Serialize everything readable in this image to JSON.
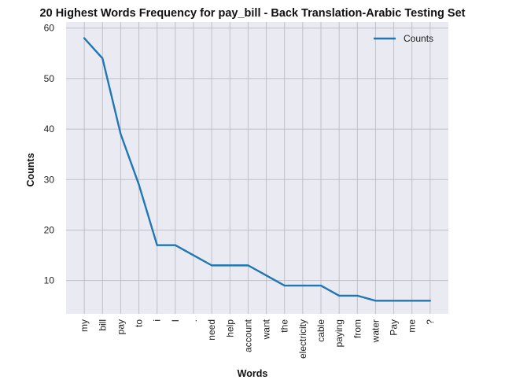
{
  "chart_data": {
    "type": "line",
    "title": "20 Highest Words Frequency for pay_bill - Back Translation-Arabic Testing Set",
    "xlabel": "Words",
    "ylabel": "Counts",
    "categories": [
      "my",
      "bill",
      "pay",
      "to",
      "i",
      "I",
      ".",
      "need",
      "help",
      "account",
      "want",
      "the",
      "electricity",
      "cable",
      "paying",
      "from",
      "water",
      "Pay",
      "me",
      "?"
    ],
    "series": [
      {
        "name": "Counts",
        "values": [
          58,
          54,
          39,
          29,
          17,
          17,
          15,
          13,
          13,
          13,
          11,
          9,
          9,
          9,
          7,
          7,
          6,
          6,
          6,
          6
        ]
      }
    ],
    "yticks": [
      10,
      20,
      30,
      40,
      50,
      60
    ],
    "ylim": [
      3.4,
      61.2
    ],
    "grid": true,
    "legend": "top-right",
    "colors": {
      "line": "#1f77b4",
      "plot_bg": "#eaeaf2",
      "grid": "#c0c0c8"
    }
  }
}
